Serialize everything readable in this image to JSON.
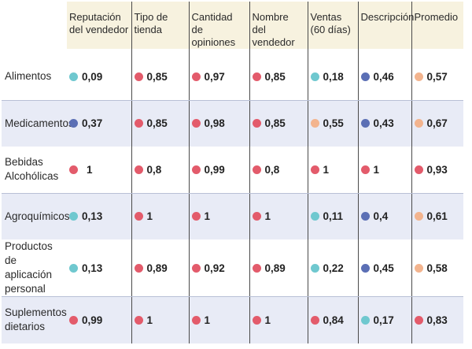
{
  "chart_data": {
    "type": "table",
    "columns": [
      "Reputación del vendedor",
      "Tipo de tienda",
      "Cantidad de opiniones",
      "Nombre del vendedor",
      "Ventas (60 días)",
      "Descripción",
      "Promedio"
    ],
    "column_lines": [
      [
        "Reputación",
        "del vendedor"
      ],
      [
        "Tipo de",
        "tienda"
      ],
      [
        "Cantidad de",
        "opiniones"
      ],
      [
        "Nombre del",
        "vendedor"
      ],
      [
        "Ventas",
        "(60 días)"
      ],
      [
        "Descripción",
        ""
      ],
      [
        "Promedio",
        ""
      ]
    ],
    "rows": [
      {
        "label": [
          "Alimentos",
          ""
        ],
        "cells": [
          {
            "value": "0,09",
            "color": "teal"
          },
          {
            "value": "0,85",
            "color": "red"
          },
          {
            "value": "0,97",
            "color": "red"
          },
          {
            "value": "0,85",
            "color": "red"
          },
          {
            "value": "0,18",
            "color": "teal"
          },
          {
            "value": "0,46",
            "color": "blue"
          },
          {
            "value": "0,57",
            "color": "peach"
          }
        ]
      },
      {
        "label": [
          "Medicamentos",
          ""
        ],
        "cells": [
          {
            "value": "0,37",
            "color": "blue"
          },
          {
            "value": "0,85",
            "color": "red"
          },
          {
            "value": "0,98",
            "color": "red"
          },
          {
            "value": "0,85",
            "color": "red"
          },
          {
            "value": "0,55",
            "color": "peach"
          },
          {
            "value": "0,43",
            "color": "blue"
          },
          {
            "value": "0,67",
            "color": "peach"
          }
        ]
      },
      {
        "label": [
          "Bebidas",
          "Alcohólicas"
        ],
        "cells": [
          {
            "value": "1",
            "color": "red"
          },
          {
            "value": "0,8",
            "color": "red"
          },
          {
            "value": "0,99",
            "color": "red"
          },
          {
            "value": "0,8",
            "color": "red"
          },
          {
            "value": "1",
            "color": "red"
          },
          {
            "value": "1",
            "color": "red"
          },
          {
            "value": "0,93",
            "color": "red"
          }
        ]
      },
      {
        "label": [
          "Agroquímicos",
          ""
        ],
        "cells": [
          {
            "value": "0,13",
            "color": "teal"
          },
          {
            "value": "1",
            "color": "red"
          },
          {
            "value": "1",
            "color": "red"
          },
          {
            "value": "1",
            "color": "red"
          },
          {
            "value": "0,11",
            "color": "teal"
          },
          {
            "value": "0,4",
            "color": "blue"
          },
          {
            "value": "0,61",
            "color": "peach"
          }
        ]
      },
      {
        "label": [
          "Productos de",
          "aplicación personal"
        ],
        "cells": [
          {
            "value": "0,13",
            "color": "teal"
          },
          {
            "value": "0,89",
            "color": "red"
          },
          {
            "value": "0,92",
            "color": "red"
          },
          {
            "value": "0,89",
            "color": "red"
          },
          {
            "value": "0,22",
            "color": "teal"
          },
          {
            "value": "0,45",
            "color": "blue"
          },
          {
            "value": "0,58",
            "color": "peach"
          }
        ]
      },
      {
        "label": [
          "Suplementos",
          "dietarios"
        ],
        "cells": [
          {
            "value": "0,99",
            "color": "red"
          },
          {
            "value": "1",
            "color": "red"
          },
          {
            "value": "1",
            "color": "red"
          },
          {
            "value": "1",
            "color": "red"
          },
          {
            "value": "0,84",
            "color": "red"
          },
          {
            "value": "0,17",
            "color": "teal"
          },
          {
            "value": "0,83",
            "color": "red"
          }
        ]
      }
    ]
  },
  "colors": {
    "red": "#e35b6b",
    "teal": "#6fc8cf",
    "blue": "#5b6fb5",
    "peach": "#f3b48e",
    "header_bg": "#f7f2df",
    "row_shade": "#e8ebf6"
  }
}
